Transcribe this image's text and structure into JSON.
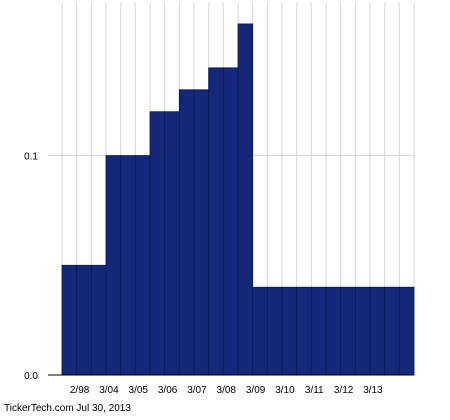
{
  "source": "TickerTech.com  Jul 30, 2013",
  "colors": {
    "bar": "#14287a",
    "bar_edge": "#0a1850",
    "grid": "#d8d8d8",
    "axis": "#000000"
  },
  "chart_data": {
    "type": "bar",
    "title": "",
    "xlabel": "",
    "ylabel": "",
    "ylim": [
      0,
      0.17
    ],
    "yticks": [
      0.0,
      0.1
    ],
    "ytick_labels": [
      "0.0",
      "0.1"
    ],
    "xtick_labels": [
      "2/98",
      "3/04",
      "3/05",
      "3/06",
      "3/07",
      "3/08",
      "3/09",
      "3/10",
      "3/11",
      "3/12",
      "3/13"
    ],
    "grid": true,
    "values": [
      0.05,
      0.05,
      0.05,
      0.1,
      0.1,
      0.1,
      0.12,
      0.12,
      0.13,
      0.13,
      0.14,
      0.14,
      0.16,
      0.04,
      0.04,
      0.04,
      0.04,
      0.04,
      0.04,
      0.04,
      0.04,
      0.04,
      0.04,
      0.04
    ]
  }
}
